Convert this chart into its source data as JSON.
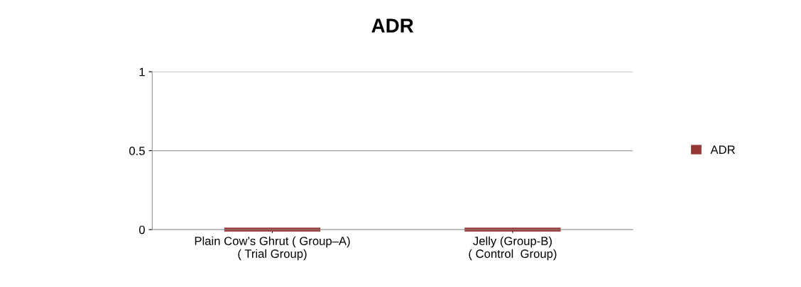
{
  "chart_data": {
    "type": "bar",
    "title": "ADR",
    "categories": [
      "Plain Cow’s Ghrut ( Group–A)\n( Trial Group)",
      "Jelly (Group-B)\n( Control  Group)"
    ],
    "series": [
      {
        "name": "ADR",
        "color": "#953735",
        "values": [
          0,
          0
        ]
      }
    ],
    "ylim": [
      0,
      1
    ],
    "yticks": [
      0,
      0.5,
      1
    ],
    "grid": "y",
    "legend": "right"
  }
}
